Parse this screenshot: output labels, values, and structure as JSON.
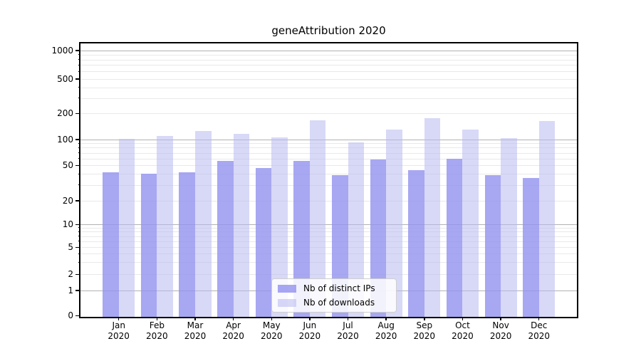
{
  "title": "geneAttribution 2020",
  "chart_data": {
    "type": "bar",
    "title": "geneAttribution 2020",
    "x_month_labels": [
      "Jan",
      "Feb",
      "Mar",
      "Apr",
      "May",
      "Jun",
      "Jul",
      "Aug",
      "Sep",
      "Oct",
      "Nov",
      "Dec"
    ],
    "x_year_label": "2020",
    "series": [
      {
        "name": "Nb of distinct IPs",
        "color": "#a7a7f2",
        "values": [
          42,
          40,
          42,
          56,
          47,
          56,
          39,
          58,
          44,
          60,
          39,
          36
        ]
      },
      {
        "name": "Nb of downloads",
        "color": "#d8d8f7",
        "values": [
          102,
          110,
          126,
          115,
          106,
          167,
          92,
          129,
          177,
          130,
          104,
          162
        ]
      }
    ],
    "y_axis": {
      "scale": "symlog",
      "tick_labels": [
        "0",
        "1",
        "2",
        "5",
        "10",
        "20",
        "50",
        "100",
        "200",
        "500",
        "1000"
      ],
      "range": [
        0,
        1200
      ]
    },
    "legend_position": "lower center",
    "grid": true
  },
  "colors": {
    "bar_distinct_ips": "#a7a7f2",
    "bar_downloads": "#d8d8f7",
    "major_gridline": "#b2b2b2",
    "minor_gridline": "#e9e9e9",
    "axis_frame": "#000000",
    "legend_border": "#cfcfcf",
    "background": "#ffffff"
  }
}
